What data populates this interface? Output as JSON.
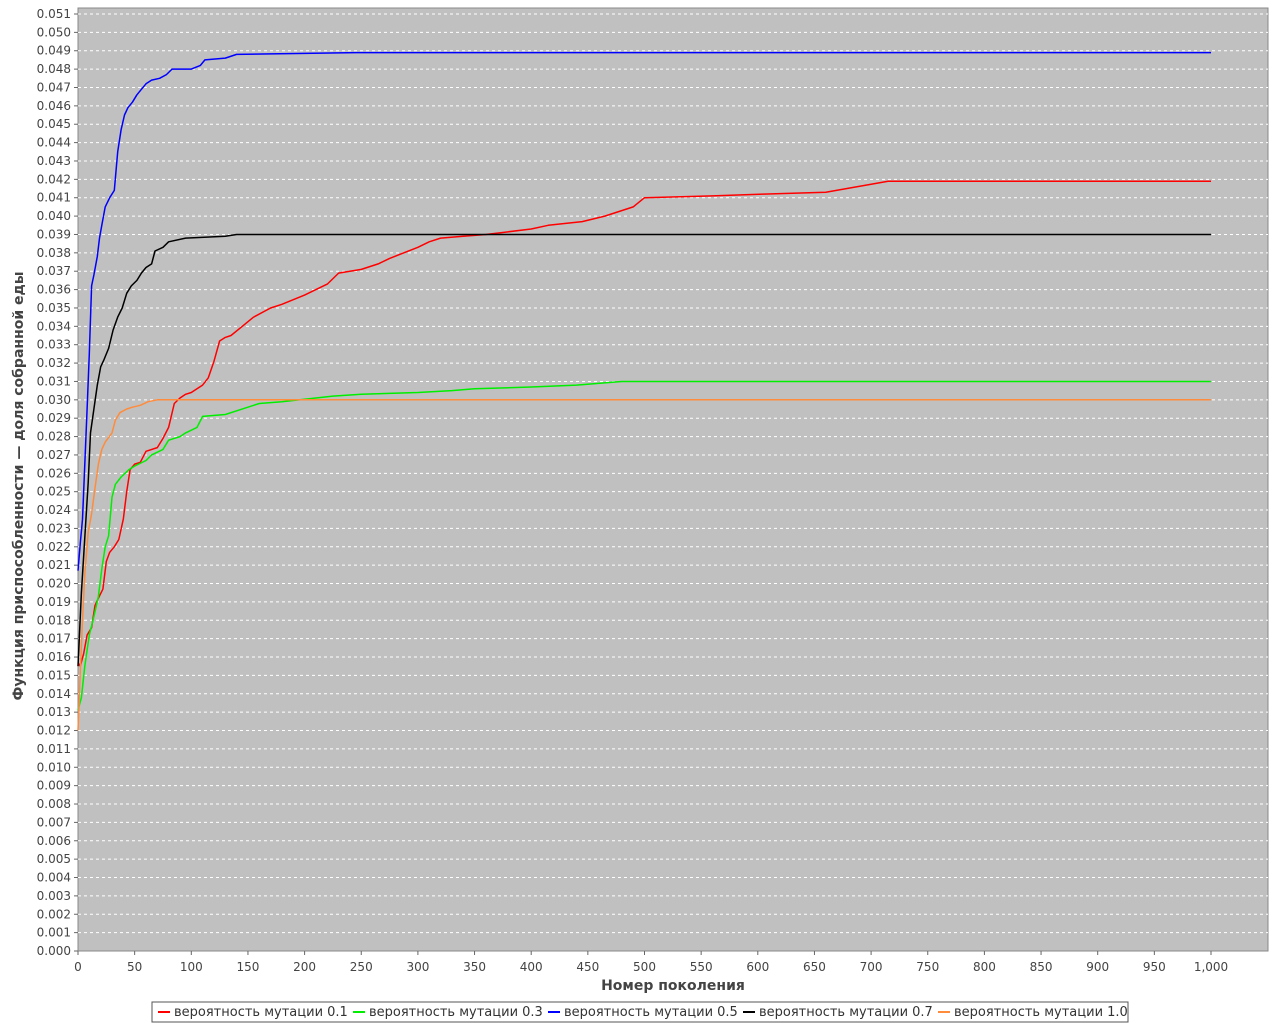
{
  "chart_data": {
    "type": "line",
    "title": "",
    "xlabel": "Номер поколения",
    "ylabel": "Функция приспособленности — доля собранной еды",
    "xlim": [
      0,
      1050
    ],
    "ylim": [
      0,
      0.0512
    ],
    "x_ticks": [
      0,
      50,
      100,
      150,
      200,
      250,
      300,
      350,
      400,
      450,
      500,
      550,
      600,
      650,
      700,
      750,
      800,
      850,
      900,
      950,
      1000
    ],
    "x_tick_labels": [
      "0",
      "50",
      "100",
      "150",
      "200",
      "250",
      "300",
      "350",
      "400",
      "450",
      "500",
      "550",
      "600",
      "650",
      "700",
      "750",
      "800",
      "850",
      "900",
      "950",
      "1,000"
    ],
    "y_tick_step": 0.001,
    "y_tick_count": 52,
    "grid": true,
    "background": "#c0c0c0",
    "legend_position": "bottom-center",
    "series": [
      {
        "name": "вероятность мутации 0.1",
        "color": "#ff0000",
        "points": [
          [
            0,
            0.0157
          ],
          [
            2,
            0.0155
          ],
          [
            5,
            0.0162
          ],
          [
            8,
            0.0172
          ],
          [
            12,
            0.0176
          ],
          [
            15,
            0.0188
          ],
          [
            18,
            0.0192
          ],
          [
            22,
            0.0197
          ],
          [
            25,
            0.0212
          ],
          [
            28,
            0.0217
          ],
          [
            32,
            0.022
          ],
          [
            36,
            0.0224
          ],
          [
            40,
            0.0235
          ],
          [
            43,
            0.025
          ],
          [
            46,
            0.0262
          ],
          [
            50,
            0.0265
          ],
          [
            55,
            0.0266
          ],
          [
            60,
            0.0272
          ],
          [
            70,
            0.0274
          ],
          [
            75,
            0.0279
          ],
          [
            80,
            0.0285
          ],
          [
            85,
            0.0298
          ],
          [
            90,
            0.0301
          ],
          [
            95,
            0.0303
          ],
          [
            100,
            0.0304
          ],
          [
            105,
            0.0306
          ],
          [
            110,
            0.0308
          ],
          [
            115,
            0.0312
          ],
          [
            120,
            0.0321
          ],
          [
            125,
            0.0332
          ],
          [
            130,
            0.0334
          ],
          [
            135,
            0.0335
          ],
          [
            145,
            0.034
          ],
          [
            155,
            0.0345
          ],
          [
            170,
            0.035
          ],
          [
            180,
            0.0352
          ],
          [
            200,
            0.0357
          ],
          [
            210,
            0.036
          ],
          [
            220,
            0.0363
          ],
          [
            230,
            0.0369
          ],
          [
            250,
            0.0371
          ],
          [
            265,
            0.0374
          ],
          [
            275,
            0.0377
          ],
          [
            300,
            0.0383
          ],
          [
            310,
            0.0386
          ],
          [
            320,
            0.0388
          ],
          [
            340,
            0.0389
          ],
          [
            360,
            0.039
          ],
          [
            400,
            0.0393
          ],
          [
            415,
            0.0395
          ],
          [
            445,
            0.0397
          ],
          [
            465,
            0.04
          ],
          [
            490,
            0.0405
          ],
          [
            500,
            0.041
          ],
          [
            560,
            0.0411
          ],
          [
            605,
            0.0412
          ],
          [
            660,
            0.0413
          ],
          [
            715,
            0.0419
          ],
          [
            1000,
            0.0419
          ]
        ]
      },
      {
        "name": "вероятность мутации 0.3",
        "color": "#00ee00",
        "points": [
          [
            0,
            0.0131
          ],
          [
            3,
            0.0138
          ],
          [
            6,
            0.0155
          ],
          [
            10,
            0.0172
          ],
          [
            14,
            0.0182
          ],
          [
            18,
            0.0193
          ],
          [
            21,
            0.0208
          ],
          [
            24,
            0.022
          ],
          [
            27,
            0.0226
          ],
          [
            30,
            0.0247
          ],
          [
            33,
            0.0254
          ],
          [
            38,
            0.0258
          ],
          [
            45,
            0.0262
          ],
          [
            50,
            0.0264
          ],
          [
            60,
            0.0267
          ],
          [
            65,
            0.027
          ],
          [
            75,
            0.0273
          ],
          [
            80,
            0.0278
          ],
          [
            90,
            0.028
          ],
          [
            95,
            0.0282
          ],
          [
            105,
            0.0285
          ],
          [
            110,
            0.0291
          ],
          [
            130,
            0.0292
          ],
          [
            150,
            0.0296
          ],
          [
            160,
            0.0298
          ],
          [
            180,
            0.0299
          ],
          [
            225,
            0.0302
          ],
          [
            250,
            0.0303
          ],
          [
            300,
            0.0304
          ],
          [
            330,
            0.0305
          ],
          [
            350,
            0.0306
          ],
          [
            400,
            0.0307
          ],
          [
            440,
            0.0308
          ],
          [
            480,
            0.031
          ],
          [
            1000,
            0.031
          ]
        ]
      },
      {
        "name": "вероятность мутации 0.5",
        "color": "#0000ff",
        "points": [
          [
            0,
            0.0207
          ],
          [
            2,
            0.0222
          ],
          [
            4,
            0.0235
          ],
          [
            6,
            0.0265
          ],
          [
            8,
            0.0295
          ],
          [
            10,
            0.0325
          ],
          [
            12,
            0.0362
          ],
          [
            14,
            0.0368
          ],
          [
            17,
            0.0378
          ],
          [
            19,
            0.0388
          ],
          [
            21,
            0.0395
          ],
          [
            24,
            0.0405
          ],
          [
            28,
            0.041
          ],
          [
            32,
            0.0414
          ],
          [
            35,
            0.0435
          ],
          [
            38,
            0.0447
          ],
          [
            41,
            0.0455
          ],
          [
            44,
            0.0459
          ],
          [
            48,
            0.0462
          ],
          [
            52,
            0.0466
          ],
          [
            56,
            0.0469
          ],
          [
            60,
            0.0472
          ],
          [
            65,
            0.0474
          ],
          [
            72,
            0.0475
          ],
          [
            78,
            0.0477
          ],
          [
            83,
            0.048
          ],
          [
            100,
            0.048
          ],
          [
            108,
            0.0482
          ],
          [
            112,
            0.0485
          ],
          [
            130,
            0.0486
          ],
          [
            140,
            0.0488
          ],
          [
            245,
            0.0489
          ],
          [
            1000,
            0.0489
          ]
        ]
      },
      {
        "name": "вероятность мутации 0.7",
        "color": "#000000",
        "points": [
          [
            0,
            0.0155
          ],
          [
            3,
            0.0195
          ],
          [
            6,
            0.0225
          ],
          [
            9,
            0.0255
          ],
          [
            11,
            0.0282
          ],
          [
            14,
            0.0295
          ],
          [
            17,
            0.0308
          ],
          [
            20,
            0.0318
          ],
          [
            23,
            0.0322
          ],
          [
            27,
            0.0328
          ],
          [
            31,
            0.0338
          ],
          [
            35,
            0.0345
          ],
          [
            39,
            0.035
          ],
          [
            43,
            0.0358
          ],
          [
            47,
            0.0362
          ],
          [
            52,
            0.0365
          ],
          [
            56,
            0.0369
          ],
          [
            60,
            0.0372
          ],
          [
            65,
            0.0374
          ],
          [
            68,
            0.0381
          ],
          [
            75,
            0.0383
          ],
          [
            80,
            0.0386
          ],
          [
            95,
            0.0388
          ],
          [
            130,
            0.0389
          ],
          [
            140,
            0.039
          ],
          [
            1000,
            0.039
          ]
        ]
      },
      {
        "name": "вероятность мутации 1.0",
        "color": "#ff8c3c",
        "points": [
          [
            0,
            0.012
          ],
          [
            2,
            0.0152
          ],
          [
            4,
            0.018
          ],
          [
            6,
            0.0205
          ],
          [
            9,
            0.0228
          ],
          [
            12,
            0.0238
          ],
          [
            15,
            0.0252
          ],
          [
            18,
            0.0265
          ],
          [
            21,
            0.0273
          ],
          [
            24,
            0.0277
          ],
          [
            30,
            0.0282
          ],
          [
            33,
            0.0289
          ],
          [
            37,
            0.0293
          ],
          [
            43,
            0.0295
          ],
          [
            48,
            0.0296
          ],
          [
            55,
            0.0297
          ],
          [
            62,
            0.0299
          ],
          [
            70,
            0.03
          ],
          [
            1000,
            0.03
          ]
        ]
      }
    ]
  }
}
